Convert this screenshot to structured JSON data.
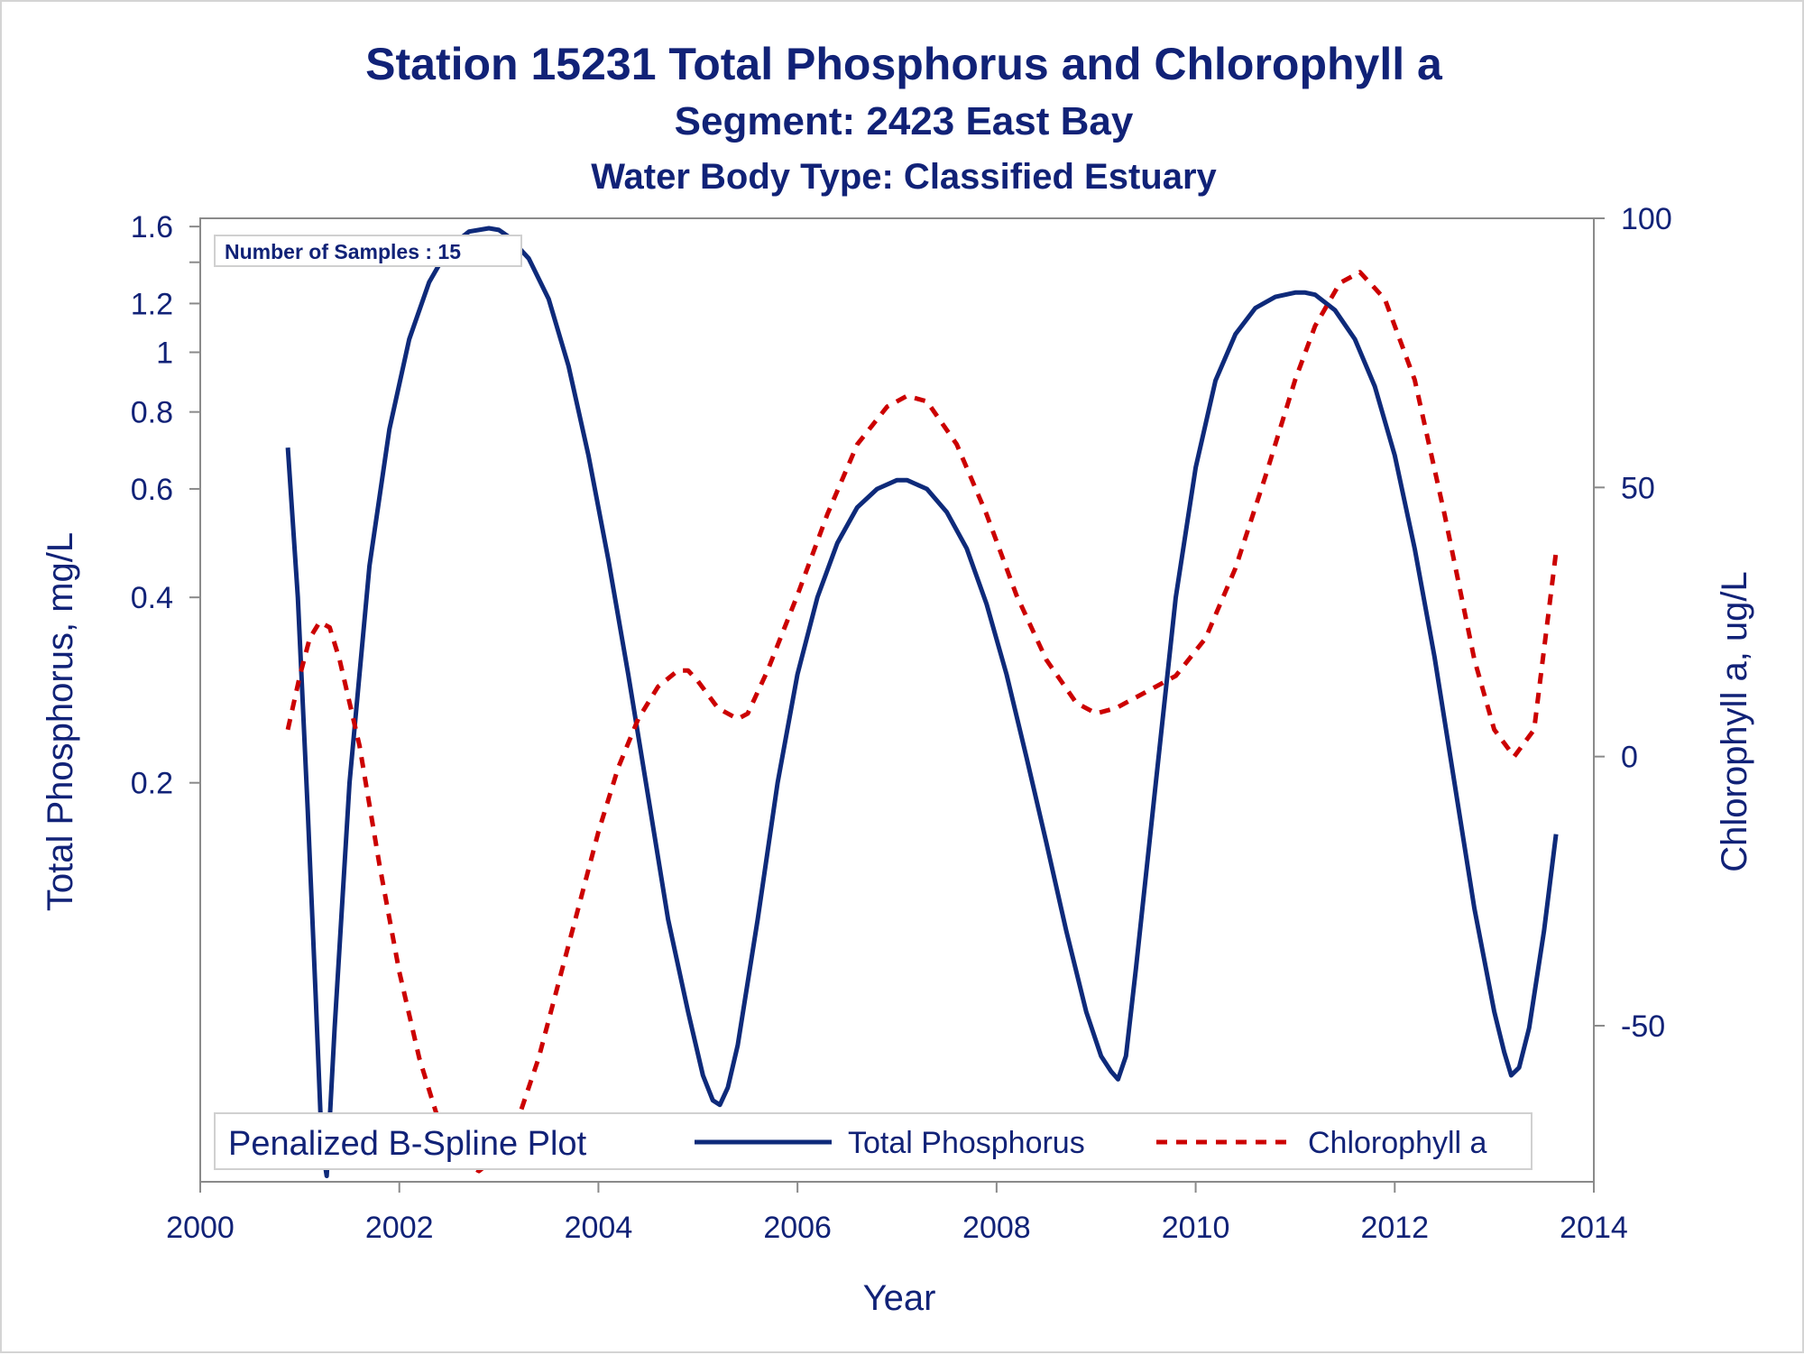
{
  "titles": {
    "line1": "Station 15231  Total Phosphorus and Chlorophyll a",
    "line2": "Segment: 2423  East Bay",
    "line3": "Water Body Type: Classified Estuary"
  },
  "colors": {
    "text": "#112277",
    "phosphorus": "#0e2a7a",
    "chlorophyll": "#cc0000",
    "axis": "#8a8a8a",
    "frame": "#d4d4d4"
  },
  "inset": {
    "text": "Number of Samples : 15"
  },
  "legend": {
    "title": "Penalized B-Spline Plot",
    "placement": "bottom-inside",
    "items": [
      "Total Phosphorus",
      "Chlorophyll a"
    ]
  },
  "chart_data": {
    "type": "line",
    "xlabel": "Year",
    "ylabel": "Total Phosphorus, mg/L",
    "y2label": "Chlorophyll a, ug/L",
    "xlim": [
      2000,
      2014
    ],
    "x_ticks": [
      2000,
      2002,
      2004,
      2006,
      2008,
      2010,
      2012,
      2014
    ],
    "y_scale": "log",
    "ylim": [
      0.045,
      1.65
    ],
    "y_ticks": [
      0.2,
      0.4,
      0.6,
      0.8,
      1,
      1.2,
      1.6
    ],
    "y_tick_labels": [
      "0.2",
      "0.4",
      "0.6",
      "0.8",
      "1",
      "1.2",
      "1.6"
    ],
    "y_minor_ticks": [
      1.4
    ],
    "y2lim": [
      -79,
      100
    ],
    "y2_ticks": [
      -50,
      0,
      50,
      100
    ],
    "grid": false,
    "series": [
      {
        "name": "Total Phosphorus",
        "axis": "left",
        "style": "solid",
        "x": [
          2000.88,
          2000.98,
          2001.08,
          2001.16,
          2001.22,
          2001.27,
          2001.35,
          2001.5,
          2001.7,
          2001.9,
          2002.1,
          2002.3,
          2002.5,
          2002.7,
          2002.9,
          2003.0,
          2003.1,
          2003.3,
          2003.5,
          2003.7,
          2003.9,
          2004.1,
          2004.3,
          2004.5,
          2004.7,
          2004.9,
          2005.05,
          2005.15,
          2005.22,
          2005.3,
          2005.4,
          2005.6,
          2005.8,
          2006.0,
          2006.2,
          2006.4,
          2006.6,
          2006.8,
          2007.0,
          2007.1,
          2007.3,
          2007.5,
          2007.7,
          2007.9,
          2008.1,
          2008.3,
          2008.5,
          2008.7,
          2008.9,
          2009.05,
          2009.15,
          2009.22,
          2009.3,
          2009.4,
          2009.6,
          2009.8,
          2010.0,
          2010.2,
          2010.4,
          2010.6,
          2010.8,
          2011.0,
          2011.1,
          2011.2,
          2011.4,
          2011.6,
          2011.8,
          2012.0,
          2012.2,
          2012.4,
          2012.6,
          2012.8,
          2013.0,
          2013.1,
          2013.17,
          2013.25,
          2013.35,
          2013.5,
          2013.62
        ],
        "y": [
          0.7,
          0.4,
          0.18,
          0.09,
          0.052,
          0.046,
          0.08,
          0.2,
          0.45,
          0.75,
          1.05,
          1.3,
          1.48,
          1.57,
          1.59,
          1.58,
          1.54,
          1.42,
          1.22,
          0.95,
          0.68,
          0.46,
          0.3,
          0.19,
          0.12,
          0.085,
          0.067,
          0.061,
          0.06,
          0.064,
          0.075,
          0.12,
          0.2,
          0.3,
          0.4,
          0.49,
          0.56,
          0.6,
          0.62,
          0.62,
          0.6,
          0.55,
          0.48,
          0.39,
          0.3,
          0.22,
          0.16,
          0.115,
          0.085,
          0.072,
          0.068,
          0.066,
          0.072,
          0.1,
          0.2,
          0.4,
          0.65,
          0.9,
          1.07,
          1.18,
          1.23,
          1.25,
          1.25,
          1.24,
          1.17,
          1.05,
          0.88,
          0.68,
          0.48,
          0.32,
          0.2,
          0.125,
          0.085,
          0.073,
          0.067,
          0.069,
          0.08,
          0.115,
          0.165
        ]
      },
      {
        "name": "Chlorophyll a",
        "axis": "right",
        "style": "dashed",
        "x": [
          2000.88,
          2001.0,
          2001.1,
          2001.2,
          2001.3,
          2001.4,
          2001.6,
          2001.8,
          2002.0,
          2002.2,
          2002.4,
          2002.6,
          2002.8,
          2003.0,
          2003.2,
          2003.4,
          2003.6,
          2003.8,
          2004.0,
          2004.2,
          2004.4,
          2004.6,
          2004.8,
          2004.9,
          2005.0,
          2005.2,
          2005.4,
          2005.5,
          2005.7,
          2006.0,
          2006.3,
          2006.6,
          2006.9,
          2007.1,
          2007.3,
          2007.6,
          2007.9,
          2008.2,
          2008.5,
          2008.8,
          2009.0,
          2009.2,
          2009.5,
          2009.8,
          2010.1,
          2010.4,
          2010.7,
          2011.0,
          2011.2,
          2011.45,
          2011.65,
          2011.9,
          2012.2,
          2012.5,
          2012.8,
          2013.0,
          2013.2,
          2013.4,
          2013.62
        ],
        "y": [
          5,
          15,
          22,
          25,
          24,
          18,
          2,
          -20,
          -40,
          -56,
          -68,
          -75,
          -77,
          -74,
          -67,
          -56,
          -42,
          -28,
          -14,
          -2,
          7,
          13,
          16,
          16,
          14,
          9,
          7,
          8,
          16,
          30,
          45,
          58,
          65,
          67,
          66,
          58,
          45,
          30,
          18,
          10,
          8,
          9,
          12,
          15,
          22,
          35,
          52,
          70,
          80,
          88,
          90,
          85,
          70,
          45,
          18,
          5,
          0,
          5,
          38
        ]
      }
    ]
  }
}
